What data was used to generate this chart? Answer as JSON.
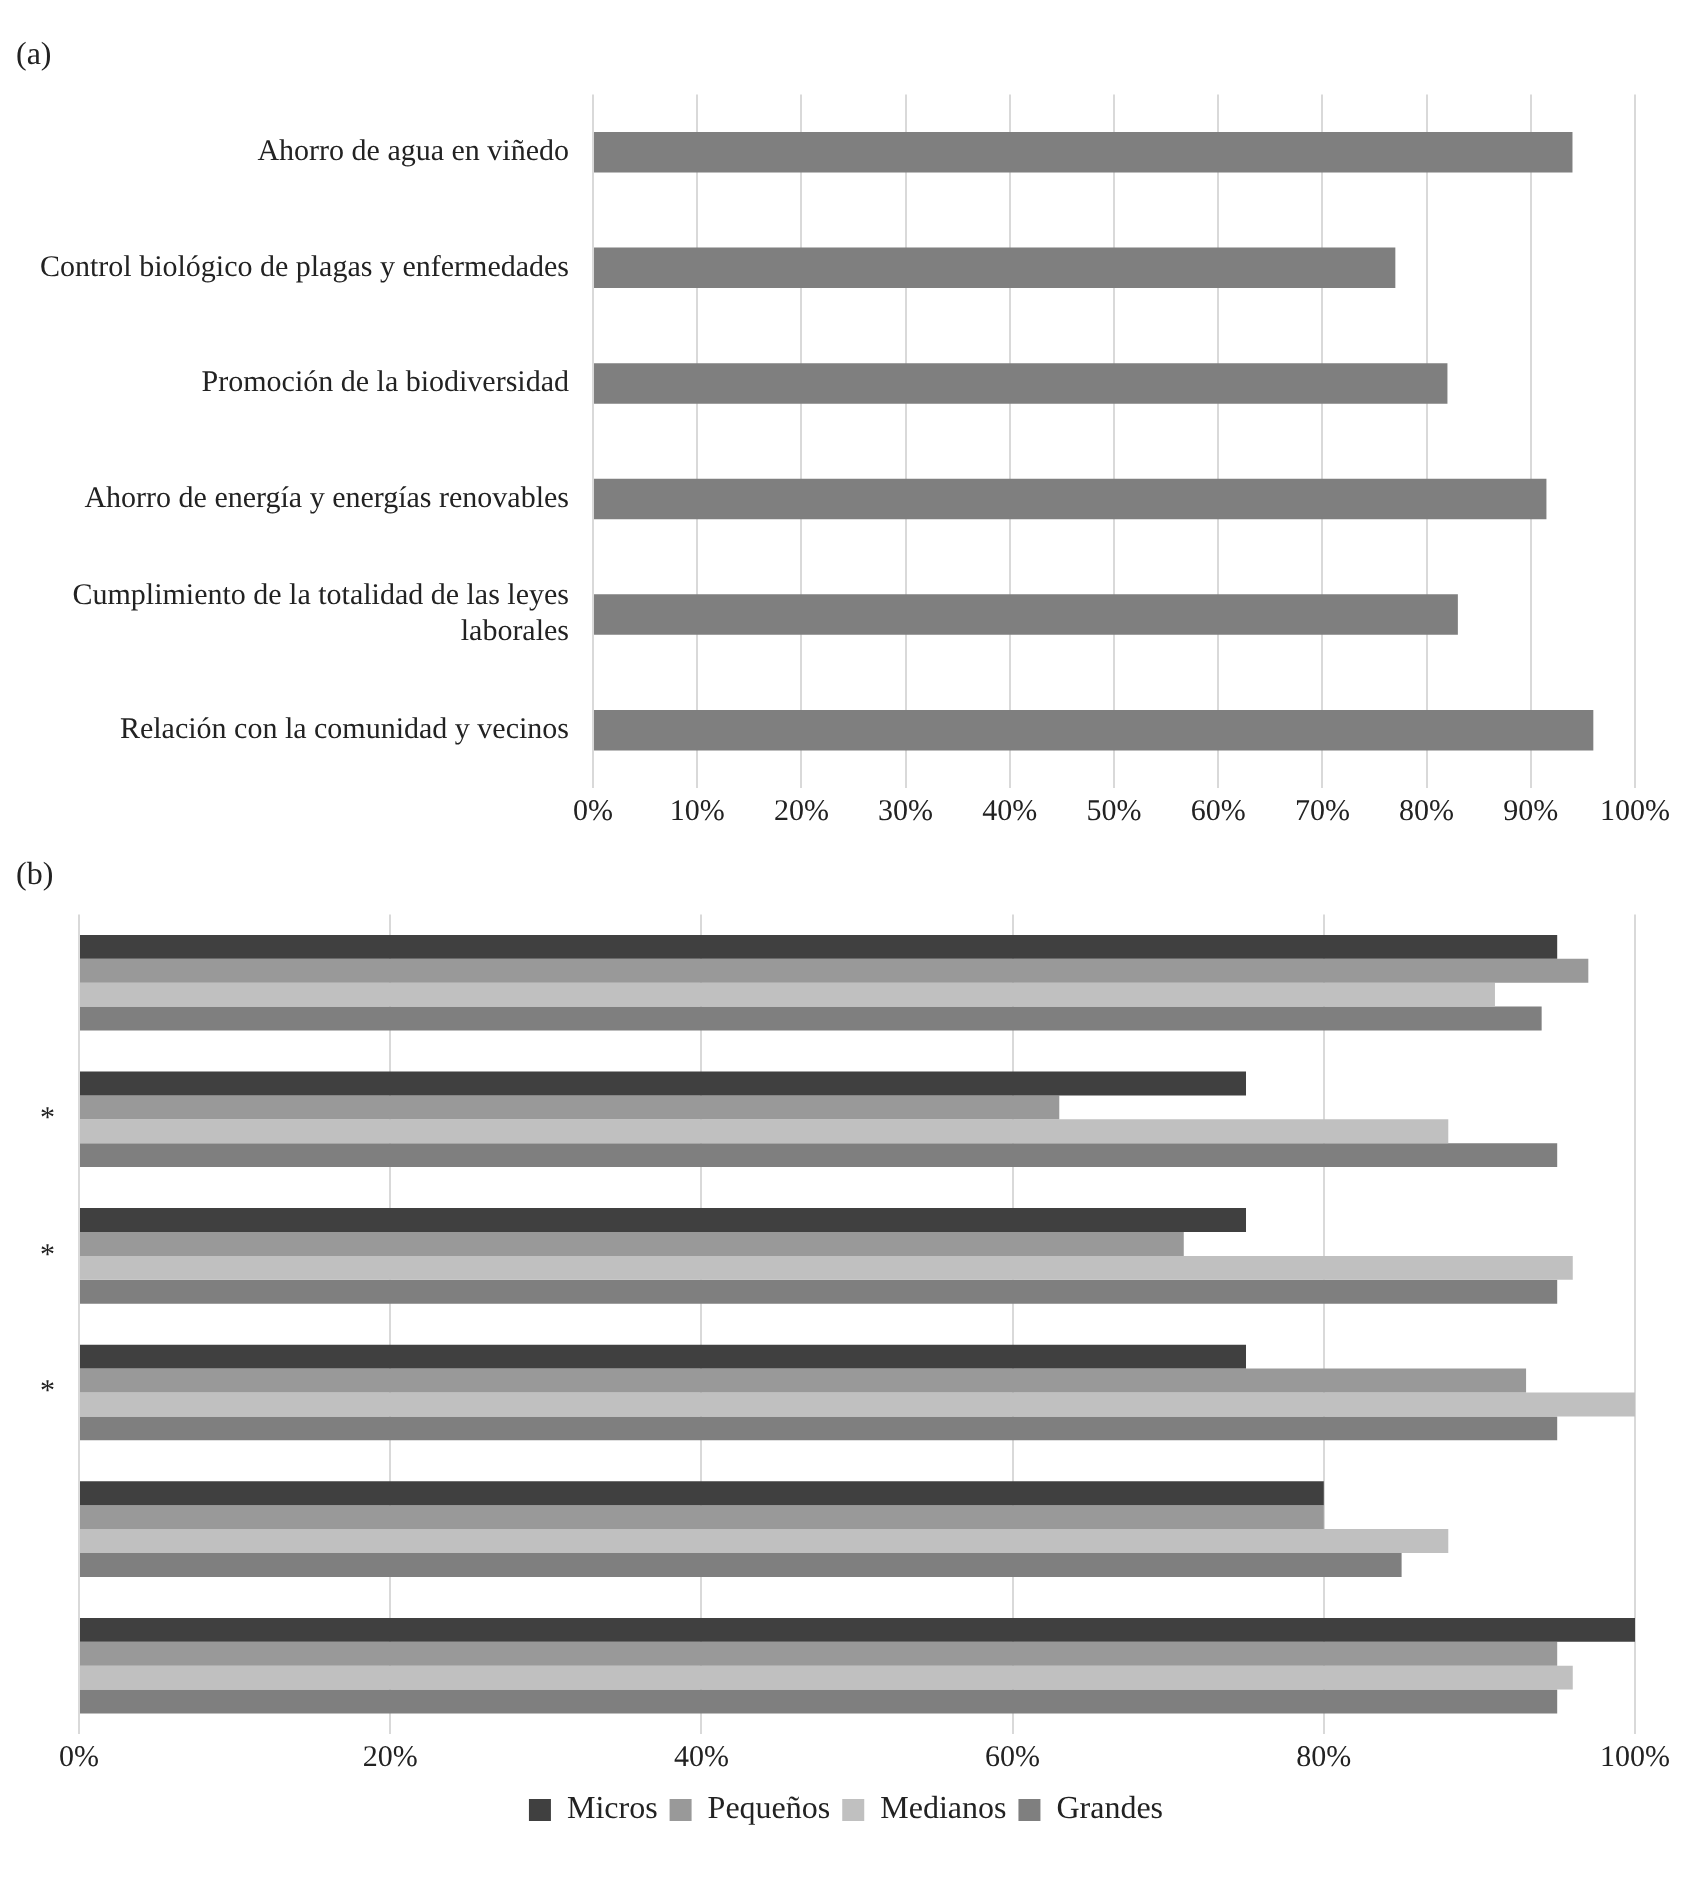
{
  "chart_data": [
    {
      "type": "bar",
      "title": "(a)",
      "orientation": "horizontal",
      "categories": [
        "Ahorro de agua en viñedo",
        "Control biológico de plagas y enfermedades",
        "Promoción de la biodiversidad",
        "Ahorro de energía y energías renovables",
        "Cumplimiento de la totalidad de las leyes laborales",
        "Relación con la comunidad y vecinos"
      ],
      "values": [
        94,
        77,
        82,
        91.5,
        83,
        96
      ],
      "color": "#7f7f7f",
      "xlim": [
        0,
        100
      ],
      "xticks": [
        {
          "value": 0,
          "label": "0%"
        },
        {
          "value": 10,
          "label": "10%"
        },
        {
          "value": 20,
          "label": "20%"
        },
        {
          "value": 30,
          "label": "30%"
        },
        {
          "value": 40,
          "label": "40%"
        },
        {
          "value": 50,
          "label": "50%"
        },
        {
          "value": 60,
          "label": "60%"
        },
        {
          "value": 70,
          "label": "70%"
        },
        {
          "value": 80,
          "label": "80%"
        },
        {
          "value": 90,
          "label": "90%"
        },
        {
          "value": 100,
          "label": "100%"
        }
      ],
      "grid": "x",
      "legend": false
    },
    {
      "type": "bar",
      "title": "(b)",
      "orientation": "horizontal",
      "categories": [
        null,
        "*",
        "*",
        "*",
        null,
        null
      ],
      "series": [
        {
          "name": "Micros",
          "color": "#404040",
          "values": [
            95,
            75,
            75,
            75,
            80,
            100
          ]
        },
        {
          "name": "Pequeños",
          "color": "#999999",
          "values": [
            97,
            63,
            71,
            93,
            80,
            95
          ]
        },
        {
          "name": "Medianos",
          "color": "#c0c0c0",
          "values": [
            91,
            88,
            96,
            100,
            88,
            96
          ]
        },
        {
          "name": "Grandes",
          "color": "#7f7f7f",
          "values": [
            94,
            95,
            95,
            95,
            85,
            95
          ]
        }
      ],
      "xlim": [
        0,
        100
      ],
      "xticks": [
        {
          "value": 0,
          "label": "0%"
        },
        {
          "value": 20,
          "label": "20%"
        },
        {
          "value": 40,
          "label": "40%"
        },
        {
          "value": 60,
          "label": "60%"
        },
        {
          "value": 80,
          "label": "80%"
        },
        {
          "value": 100,
          "label": "100%"
        }
      ],
      "grid": "x",
      "legend": "bottom"
    }
  ]
}
